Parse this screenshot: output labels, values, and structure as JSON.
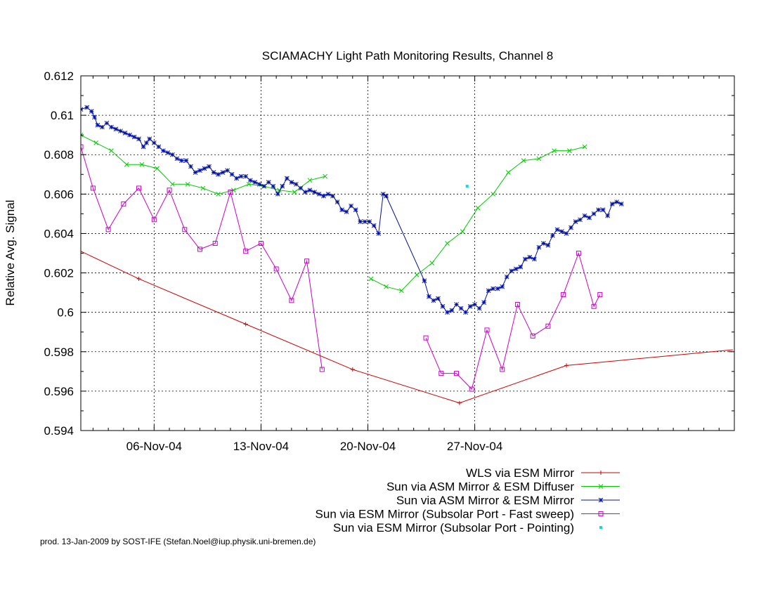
{
  "footer_text": "prod. 13-Jan-2009 by SOST-IFE (Stefan.Noel@iup.physik.uni-bremen.de)",
  "chart_data": {
    "type": "line",
    "title": "SCIAMACHY Light Path Monitoring Results, Channel 8",
    "ylabel": "Relative Avg. Signal",
    "xlabel": "",
    "x_unit": "days from 2004-11-01",
    "xlim": [
      0.2,
      43.0
    ],
    "ylim": [
      0.594,
      0.612
    ],
    "yticks": [
      0.594,
      0.596,
      0.598,
      0.6,
      0.602,
      0.604,
      0.606,
      0.608,
      0.61,
      0.612
    ],
    "ytick_labels": [
      "0.594",
      "0.596",
      "0.598",
      "0.6",
      "0.602",
      "0.604",
      "0.606",
      "0.608",
      "0.61",
      "0.612"
    ],
    "xticks": [
      5,
      12,
      19,
      26
    ],
    "xtick_labels": [
      "06-Nov-04",
      "13-Nov-04",
      "20-Nov-04",
      "27-Nov-04"
    ],
    "grid": true,
    "legend_position": "below-right",
    "series": [
      {
        "name": "WLS via ESM Mirror",
        "color": "#d00000",
        "marker": "plus",
        "points": [
          [
            0.2,
            0.6031
          ],
          [
            4.0,
            0.6017
          ],
          [
            11.0,
            0.5994
          ],
          [
            18.0,
            0.5971
          ],
          [
            25.0,
            0.5954
          ],
          [
            32.0,
            0.5973
          ],
          [
            42.9,
            0.5981
          ]
        ]
      },
      {
        "name": "Sun via ASM Mirror & ESM Diffuser",
        "color": "#00cc00",
        "marker": "cross",
        "points": [
          [
            0.2,
            0.609
          ],
          [
            1.2,
            0.6086
          ],
          [
            2.2,
            0.6082
          ],
          [
            3.2,
            0.6075
          ],
          [
            4.2,
            0.6075
          ],
          [
            5.2,
            0.6073
          ],
          [
            6.2,
            0.6065
          ],
          [
            7.2,
            0.6065
          ],
          [
            8.2,
            0.6063
          ],
          [
            9.2,
            0.606
          ],
          [
            10.2,
            0.6062
          ],
          [
            11.2,
            0.6065
          ],
          [
            12.2,
            0.6064
          ],
          [
            13.2,
            0.6062
          ],
          [
            14.2,
            0.6061
          ],
          [
            15.2,
            0.6067
          ],
          [
            16.2,
            0.6069
          ],
          [
            19.2,
            0.6017
          ],
          [
            20.2,
            0.6013
          ],
          [
            21.2,
            0.6011
          ],
          [
            22.2,
            0.6019
          ],
          [
            23.2,
            0.6025
          ],
          [
            24.2,
            0.6035
          ],
          [
            25.2,
            0.6041
          ],
          [
            26.2,
            0.6053
          ],
          [
            27.2,
            0.606
          ],
          [
            28.2,
            0.6071
          ],
          [
            29.2,
            0.6077
          ],
          [
            30.2,
            0.6078
          ],
          [
            31.2,
            0.6082
          ],
          [
            32.2,
            0.6082
          ],
          [
            33.2,
            0.6084
          ]
        ]
      },
      {
        "name": "Sun via ASM Mirror & ESM Mirror",
        "color": "#0010a0",
        "marker": "star",
        "points": [
          [
            0.2,
            0.6103
          ],
          [
            0.6,
            0.6104
          ],
          [
            0.9,
            0.6102
          ],
          [
            1.1,
            0.6099
          ],
          [
            1.3,
            0.6095
          ],
          [
            1.6,
            0.6094
          ],
          [
            1.9,
            0.6096
          ],
          [
            2.2,
            0.6094
          ],
          [
            2.5,
            0.6093
          ],
          [
            2.8,
            0.6092
          ],
          [
            3.1,
            0.6091
          ],
          [
            3.4,
            0.609
          ],
          [
            3.7,
            0.6089
          ],
          [
            4.0,
            0.6088
          ],
          [
            4.3,
            0.6084
          ],
          [
            4.5,
            0.6086
          ],
          [
            4.7,
            0.6088
          ],
          [
            5.0,
            0.6086
          ],
          [
            5.3,
            0.6084
          ],
          [
            5.6,
            0.6082
          ],
          [
            5.9,
            0.6081
          ],
          [
            6.2,
            0.608
          ],
          [
            6.5,
            0.6078
          ],
          [
            6.8,
            0.6077
          ],
          [
            7.1,
            0.6077
          ],
          [
            7.4,
            0.6074
          ],
          [
            7.7,
            0.6071
          ],
          [
            8.0,
            0.6072
          ],
          [
            8.3,
            0.6073
          ],
          [
            8.6,
            0.6074
          ],
          [
            8.9,
            0.6071
          ],
          [
            9.2,
            0.607
          ],
          [
            9.5,
            0.6071
          ],
          [
            9.8,
            0.6072
          ],
          [
            10.1,
            0.607
          ],
          [
            10.4,
            0.6068
          ],
          [
            10.7,
            0.6069
          ],
          [
            11.0,
            0.6069
          ],
          [
            11.3,
            0.6067
          ],
          [
            11.6,
            0.6066
          ],
          [
            11.9,
            0.6065
          ],
          [
            12.2,
            0.6064
          ],
          [
            12.5,
            0.6066
          ],
          [
            12.8,
            0.6064
          ],
          [
            13.1,
            0.606
          ],
          [
            13.4,
            0.6064
          ],
          [
            13.7,
            0.6068
          ],
          [
            14.0,
            0.6066
          ],
          [
            14.3,
            0.6065
          ],
          [
            14.6,
            0.6063
          ],
          [
            14.9,
            0.6061
          ],
          [
            15.2,
            0.6062
          ],
          [
            15.5,
            0.6061
          ],
          [
            15.8,
            0.606
          ],
          [
            16.1,
            0.6059
          ],
          [
            16.4,
            0.606
          ],
          [
            16.7,
            0.6059
          ],
          [
            17.0,
            0.6056
          ],
          [
            17.3,
            0.6052
          ],
          [
            17.6,
            0.6051
          ],
          [
            17.9,
            0.6054
          ],
          [
            18.2,
            0.6052
          ],
          [
            18.5,
            0.6046
          ],
          [
            18.8,
            0.6046
          ],
          [
            19.1,
            0.6046
          ],
          [
            19.4,
            0.6044
          ],
          [
            19.7,
            0.604
          ],
          [
            20.0,
            0.606
          ],
          [
            20.2,
            0.6059
          ],
          [
            22.7,
            0.6016
          ],
          [
            23.0,
            0.6008
          ],
          [
            23.3,
            0.6006
          ],
          [
            23.6,
            0.6007
          ],
          [
            23.9,
            0.6003
          ],
          [
            24.2,
            0.6
          ],
          [
            24.5,
            0.6001
          ],
          [
            24.8,
            0.6004
          ],
          [
            25.1,
            0.6002
          ],
          [
            25.4,
            0.6
          ],
          [
            25.7,
            0.6003
          ],
          [
            26.0,
            0.6004
          ],
          [
            26.3,
            0.6002
          ],
          [
            26.6,
            0.6005
          ],
          [
            26.9,
            0.6011
          ],
          [
            27.2,
            0.6012
          ],
          [
            27.5,
            0.6012
          ],
          [
            27.8,
            0.6013
          ],
          [
            28.1,
            0.6018
          ],
          [
            28.4,
            0.6021
          ],
          [
            28.7,
            0.6022
          ],
          [
            29.0,
            0.6023
          ],
          [
            29.3,
            0.6027
          ],
          [
            29.6,
            0.6028
          ],
          [
            29.9,
            0.6027
          ],
          [
            30.2,
            0.6033
          ],
          [
            30.5,
            0.6035
          ],
          [
            30.8,
            0.6034
          ],
          [
            31.1,
            0.6039
          ],
          [
            31.4,
            0.6042
          ],
          [
            31.7,
            0.6041
          ],
          [
            32.0,
            0.604
          ],
          [
            32.3,
            0.6043
          ],
          [
            32.6,
            0.6046
          ],
          [
            32.9,
            0.6047
          ],
          [
            33.2,
            0.6049
          ],
          [
            33.5,
            0.6048
          ],
          [
            33.8,
            0.605
          ],
          [
            34.1,
            0.6052
          ],
          [
            34.4,
            0.6052
          ],
          [
            34.7,
            0.6049
          ],
          [
            35.0,
            0.6055
          ],
          [
            35.3,
            0.6056
          ],
          [
            35.6,
            0.6055
          ]
        ]
      },
      {
        "name": "Sun via ESM Mirror (Subsolar Port - Fast sweep)",
        "color": "#cc00cc",
        "marker": "square",
        "points": [
          [
            0.2,
            0.6084
          ],
          [
            1.0,
            0.6063
          ],
          [
            2.0,
            0.6042
          ],
          [
            3.0,
            0.6055
          ],
          [
            4.0,
            0.6063
          ],
          [
            5.0,
            0.6047
          ],
          [
            6.0,
            0.6062
          ],
          [
            7.0,
            0.6042
          ],
          [
            8.0,
            0.6032
          ],
          [
            9.0,
            0.6035
          ],
          [
            10.0,
            0.6061
          ],
          [
            11.0,
            0.6031
          ],
          [
            12.0,
            0.6035
          ],
          [
            13.0,
            0.6022
          ],
          [
            14.0,
            0.6006
          ],
          [
            15.0,
            0.6026
          ],
          [
            16.0,
            0.5971
          ],
          [
            22.8,
            0.5987
          ],
          [
            23.8,
            0.5969
          ],
          [
            24.8,
            0.5969
          ],
          [
            25.8,
            0.5961
          ],
          [
            26.8,
            0.5991
          ],
          [
            27.8,
            0.5971
          ],
          [
            28.8,
            0.6004
          ],
          [
            29.8,
            0.5988
          ],
          [
            30.8,
            0.5993
          ],
          [
            31.8,
            0.6009
          ],
          [
            32.8,
            0.603
          ],
          [
            33.8,
            0.6003
          ],
          [
            34.2,
            0.6009
          ]
        ]
      },
      {
        "name": "Sun via ESM Mirror (Subsolar Port - Pointing)",
        "color": "#00e0e0",
        "marker": "dot",
        "points": [
          [
            25.5,
            0.6064
          ]
        ]
      }
    ]
  }
}
